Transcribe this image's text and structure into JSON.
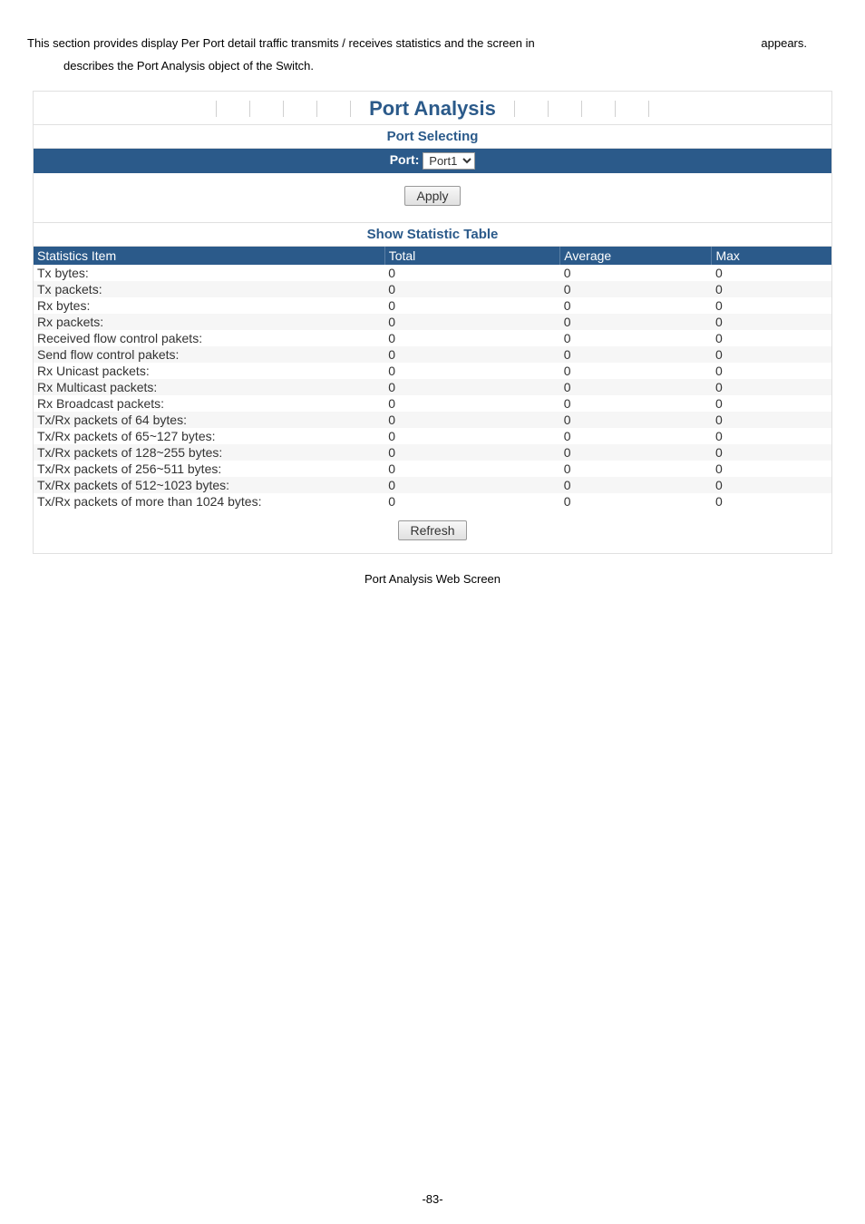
{
  "intro": {
    "line1_left": "This section provides display Per Port detail traffic transmits / receives statistics and the screen in",
    "line1_right": "appears.",
    "line2": "describes the Port Analysis object of the Switch."
  },
  "main_title": "Port Analysis",
  "port_selecting_title": "Port Selecting",
  "port_label": "Port:",
  "port_selected": "Port1",
  "apply_label": "Apply",
  "show_stat_title": "Show Statistic Table",
  "columns": {
    "item": "Statistics Item",
    "total": "Total",
    "average": "Average",
    "max": "Max"
  },
  "rows": [
    {
      "item": "Tx bytes:",
      "total": "0",
      "avg": "0",
      "max": "0"
    },
    {
      "item": "Tx packets:",
      "total": "0",
      "avg": "0",
      "max": "0"
    },
    {
      "item": "Rx bytes:",
      "total": "0",
      "avg": "0",
      "max": "0"
    },
    {
      "item": "Rx packets:",
      "total": "0",
      "avg": "0",
      "max": "0"
    },
    {
      "item": "Received flow control pakets:",
      "total": "0",
      "avg": "0",
      "max": "0"
    },
    {
      "item": "Send flow control pakets:",
      "total": "0",
      "avg": "0",
      "max": "0"
    },
    {
      "item": "Rx Unicast packets:",
      "total": "0",
      "avg": "0",
      "max": "0"
    },
    {
      "item": "Rx Multicast packets:",
      "total": "0",
      "avg": "0",
      "max": "0"
    },
    {
      "item": "Rx Broadcast packets:",
      "total": "0",
      "avg": "0",
      "max": "0"
    },
    {
      "item": "Tx/Rx packets of 64 bytes:",
      "total": "0",
      "avg": "0",
      "max": "0"
    },
    {
      "item": "Tx/Rx packets of 65~127 bytes:",
      "total": "0",
      "avg": "0",
      "max": "0"
    },
    {
      "item": "Tx/Rx packets of 128~255 bytes:",
      "total": "0",
      "avg": "0",
      "max": "0"
    },
    {
      "item": "Tx/Rx packets of 256~511 bytes:",
      "total": "0",
      "avg": "0",
      "max": "0"
    },
    {
      "item": "Tx/Rx packets of 512~1023 bytes:",
      "total": "0",
      "avg": "0",
      "max": "0"
    },
    {
      "item": "Tx/Rx packets of more than 1024 bytes:",
      "total": "0",
      "avg": "0",
      "max": "0"
    }
  ],
  "refresh_label": "Refresh",
  "caption": "Port Analysis Web Screen",
  "page_num": "-83-",
  "colors": {
    "heading": "#2b5a8a",
    "bar": "#2b5a8a",
    "border": "#e0e0e0"
  }
}
